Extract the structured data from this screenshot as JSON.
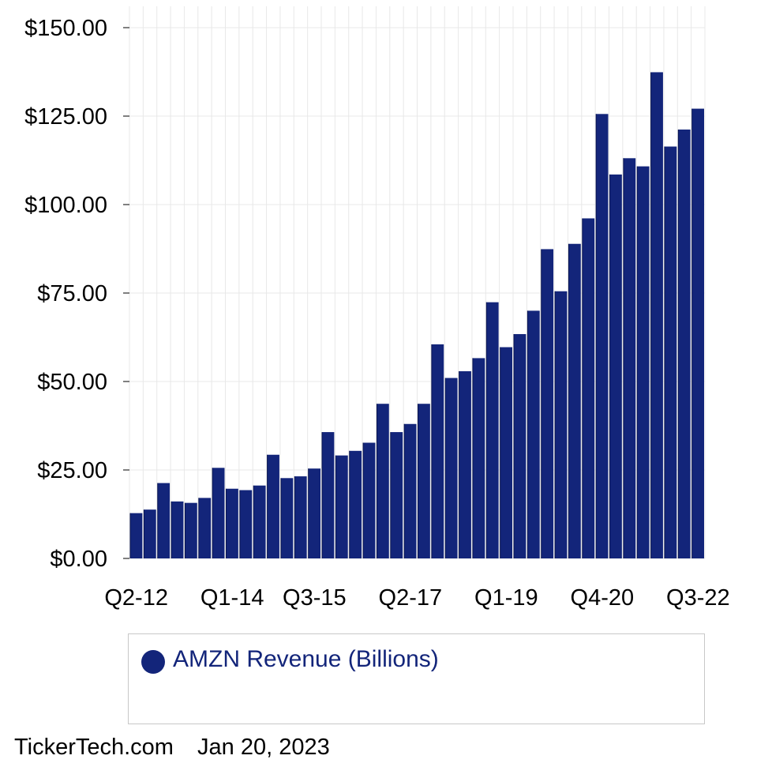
{
  "chart_data": {
    "type": "bar",
    "categories": [
      "Q2-12",
      "Q3-12",
      "Q4-12",
      "Q1-13",
      "Q2-13",
      "Q3-13",
      "Q4-13",
      "Q1-14",
      "Q2-14",
      "Q3-14",
      "Q4-14",
      "Q1-15",
      "Q2-15",
      "Q3-15",
      "Q4-15",
      "Q1-16",
      "Q2-16",
      "Q3-16",
      "Q4-16",
      "Q1-17",
      "Q2-17",
      "Q3-17",
      "Q4-17",
      "Q1-18",
      "Q2-18",
      "Q3-18",
      "Q4-18",
      "Q1-19",
      "Q2-19",
      "Q3-19",
      "Q4-19",
      "Q1-20",
      "Q2-20",
      "Q3-20",
      "Q4-20",
      "Q1-21",
      "Q2-21",
      "Q3-21",
      "Q4-21",
      "Q1-22",
      "Q2-22",
      "Q3-22"
    ],
    "series": [
      {
        "name": "AMZN Revenue (Billions)",
        "values": [
          12.8,
          13.8,
          21.3,
          16.1,
          15.7,
          17.1,
          25.6,
          19.7,
          19.3,
          20.6,
          29.3,
          22.7,
          23.2,
          25.4,
          35.7,
          29.1,
          30.4,
          32.7,
          43.7,
          35.7,
          38.0,
          43.7,
          60.5,
          51.0,
          52.9,
          56.6,
          72.4,
          59.7,
          63.4,
          70.0,
          87.4,
          75.5,
          88.9,
          96.1,
          125.6,
          108.5,
          113.1,
          110.8,
          137.4,
          116.4,
          121.2,
          127.1
        ]
      }
    ],
    "xticks": [
      "Q2-12",
      "Q1-14",
      "Q3-15",
      "Q2-17",
      "Q1-19",
      "Q4-20",
      "Q3-22"
    ],
    "yticks": [
      "$0.00",
      "$25.00",
      "$50.00",
      "$75.00",
      "$100.00",
      "$125.00",
      "$150.00"
    ],
    "ylim": [
      0,
      155
    ],
    "grid": true,
    "legend_position": "bottom",
    "colors": {
      "bar": "#13257a",
      "grid": "#e8e8e8",
      "legend_text": "#13257a"
    }
  },
  "legend": {
    "label": "AMZN Revenue (Billions)"
  },
  "footer": {
    "source": "TickerTech.com",
    "date": "Jan 20, 2023"
  }
}
